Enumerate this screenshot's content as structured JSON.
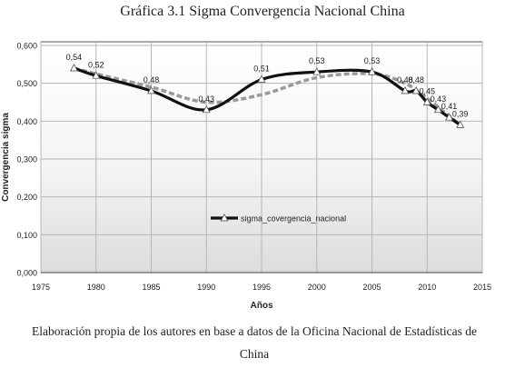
{
  "figure": {
    "title": "Gráfica 3.1 Sigma Convergencia Nacional China",
    "source_line1": "Elaboración propia de los autores en base a datos de la Oficina Nacional de Estadísticas de",
    "source_line2": "China"
  },
  "chart_data": {
    "type": "line",
    "xlabel": "Años",
    "ylabel": "Convergencia sigma",
    "xlim": [
      1975,
      2015
    ],
    "ylim": [
      0,
      0.6
    ],
    "xticks": [
      "1975",
      "1980",
      "1985",
      "1990",
      "1995",
      "2000",
      "2005",
      "2010",
      "2015"
    ],
    "yticks": [
      "0,000",
      "0,100",
      "0,200",
      "0,300",
      "0,400",
      "0,500",
      "0,600"
    ],
    "grid": true,
    "legend_position": "center",
    "series": [
      {
        "name": "sigma_covergencia_nacional",
        "color": "#111111",
        "x": [
          1978,
          1980,
          1985,
          1990,
          1995,
          2000,
          2005,
          2008,
          2009,
          2010,
          2011,
          2012,
          2013
        ],
        "values": [
          0.54,
          0.52,
          0.48,
          0.43,
          0.51,
          0.53,
          0.53,
          0.48,
          0.48,
          0.45,
          0.43,
          0.41,
          0.39
        ]
      }
    ],
    "trend": {
      "color": "#9a9a9a",
      "x": [
        1978,
        1980,
        1985,
        1990,
        1995,
        2000,
        2005,
        2008,
        2010,
        2013
      ],
      "values": [
        0.54,
        0.525,
        0.49,
        0.45,
        0.47,
        0.515,
        0.525,
        0.5,
        0.46,
        0.39
      ]
    },
    "data_labels": [
      {
        "x": 1978,
        "y": 0.54,
        "text": "0,54"
      },
      {
        "x": 1980,
        "y": 0.52,
        "text": "0,52"
      },
      {
        "x": 1985,
        "y": 0.48,
        "text": "0,48"
      },
      {
        "x": 1990,
        "y": 0.43,
        "text": "0,43"
      },
      {
        "x": 1995,
        "y": 0.51,
        "text": "0,51"
      },
      {
        "x": 2000,
        "y": 0.53,
        "text": "0,53"
      },
      {
        "x": 2005,
        "y": 0.53,
        "text": "0,53"
      },
      {
        "x": 2008,
        "y": 0.48,
        "text": "0,48"
      },
      {
        "x": 2009,
        "y": 0.48,
        "text": "0,48"
      },
      {
        "x": 2010,
        "y": 0.45,
        "text": "0,45"
      },
      {
        "x": 2011,
        "y": 0.43,
        "text": "0,43"
      },
      {
        "x": 2012,
        "y": 0.41,
        "text": "0,41"
      },
      {
        "x": 2013,
        "y": 0.39,
        "text": "0,39"
      }
    ]
  }
}
